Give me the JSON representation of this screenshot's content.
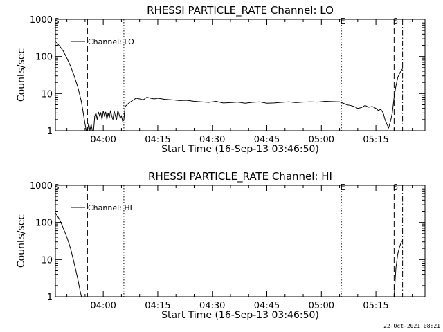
{
  "chart_data": [
    {
      "type": "line",
      "title": "RHESSI PARTICLE_RATE Channel: LO",
      "xlabel": "Start Time (16-Sep-13 03:46:50)",
      "ylabel": "Counts/sec",
      "yscale": "log",
      "xlim": [
        "03:46:50",
        "05:28:30"
      ],
      "ylim": [
        1,
        1000
      ],
      "xticks": [
        "04:00",
        "04:15",
        "04:30",
        "04:45",
        "05:00",
        "05:15"
      ],
      "yticks": [
        "1",
        "10",
        "100",
        "1000"
      ],
      "legend": {
        "placement": "top-left",
        "entries": [
          "Channel: LO"
        ]
      },
      "event_lines": [
        {
          "label": "S",
          "time": "03:46:50",
          "style": "none"
        },
        {
          "label": "",
          "time": "03:55:40",
          "style": "dashed"
        },
        {
          "label": "",
          "time": "04:05:40",
          "style": "dotted"
        },
        {
          "label": "E",
          "time": "05:05:30",
          "style": "dotted"
        },
        {
          "label": "S",
          "time": "05:20:00",
          "style": "dashed"
        },
        {
          "label": "",
          "time": "05:22:20",
          "style": "dash-dot"
        }
      ],
      "series": [
        {
          "x": [
            "03:46:50",
            "03:48:00",
            "03:49:00",
            "03:50:00",
            "03:51:00",
            "03:52:00",
            "03:53:00",
            "03:54:00",
            "03:54:30",
            "03:55:00",
            "03:55:20",
            "03:55:40",
            "03:56:00",
            "03:56:20",
            "03:56:40",
            "03:57:00",
            "03:57:20",
            "03:57:40",
            "03:58:00",
            "03:58:20",
            "03:58:40",
            "03:59:00",
            "03:59:20",
            "03:59:40",
            "04:00:00",
            "04:00:20",
            "04:00:40",
            "04:01:00",
            "04:01:20",
            "04:01:40",
            "04:02:00",
            "04:02:20",
            "04:02:40",
            "04:03:00",
            "04:03:20",
            "04:03:40",
            "04:04:00",
            "04:04:20",
            "04:04:40",
            "04:05:00",
            "04:05:20",
            "04:05:40",
            "04:06:00",
            "04:07:00",
            "04:08:00",
            "04:09:00",
            "04:10:00",
            "04:11:00",
            "04:12:00",
            "04:13:00",
            "04:14:00",
            "04:15:00",
            "04:17:00",
            "04:19:00",
            "04:21:00",
            "04:23:00",
            "04:25:00",
            "04:27:00",
            "04:29:00",
            "04:31:00",
            "04:33:00",
            "04:35:00",
            "04:37:00",
            "04:39:00",
            "04:41:00",
            "04:43:00",
            "04:45:00",
            "04:47:00",
            "04:49:00",
            "04:51:00",
            "04:53:00",
            "04:55:00",
            "04:57:00",
            "04:59:00",
            "05:01:00",
            "05:03:00",
            "05:05:00",
            "05:06:00",
            "05:07:00",
            "05:08:00",
            "05:09:00",
            "05:10:00",
            "05:11:00",
            "05:12:00",
            "05:13:00",
            "05:14:00",
            "05:15:00",
            "05:15:40",
            "05:16:20",
            "05:17:00",
            "05:17:30",
            "05:18:00",
            "05:18:30",
            "05:19:00",
            "05:19:30",
            "05:20:00",
            "05:20:30",
            "05:21:00",
            "05:21:30",
            "05:22:00",
            "05:22:20"
          ],
          "values": [
            260,
            190,
            140,
            90,
            55,
            30,
            15,
            6,
            3,
            1.5,
            1,
            1,
            1.6,
            1,
            1.5,
            1,
            1,
            2.5,
            3,
            2,
            3.2,
            2.5,
            3,
            2,
            3.4,
            2.5,
            3.2,
            2,
            3,
            2.2,
            3.5,
            2.5,
            2,
            3.4,
            2.5,
            2,
            3.5,
            2.8,
            2.2,
            2.5,
            1.8,
            1.9,
            4.5,
            5.5,
            6.5,
            7.5,
            7.2,
            6.8,
            8,
            7.5,
            7.2,
            7.5,
            7,
            6.8,
            6.5,
            6.6,
            6.2,
            6,
            5.8,
            6.2,
            5.6,
            5.7,
            5.9,
            5.5,
            5.8,
            6,
            5.5,
            5.6,
            5.8,
            6,
            5.7,
            5.9,
            6,
            5.9,
            6.2,
            6.1,
            6,
            5.5,
            5,
            4.8,
            4.5,
            4,
            4.2,
            4.8,
            4.3,
            4.5,
            4,
            3.5,
            3.8,
            3,
            2,
            1.5,
            1.2,
            1.8,
            3,
            8,
            16,
            27,
            35,
            42,
            47
          ]
        }
      ]
    },
    {
      "type": "line",
      "title": "RHESSI PARTICLE_RATE Channel: HI",
      "xlabel": "Start Time (16-Sep-13 03:46:50)",
      "ylabel": "Counts/sec",
      "yscale": "log",
      "xlim": [
        "03:46:50",
        "05:28:30"
      ],
      "ylim": [
        1,
        1000
      ],
      "xticks": [
        "04:00",
        "04:15",
        "04:30",
        "04:45",
        "05:00",
        "05:15"
      ],
      "yticks": [
        "1",
        "10",
        "100",
        "1000"
      ],
      "legend": {
        "placement": "top-left",
        "entries": [
          "Channel: HI"
        ]
      },
      "event_lines": [
        {
          "label": "S",
          "time": "03:46:50",
          "style": "none"
        },
        {
          "label": "",
          "time": "03:55:40",
          "style": "dashed"
        },
        {
          "label": "",
          "time": "04:05:40",
          "style": "dotted"
        },
        {
          "label": "E",
          "time": "05:05:30",
          "style": "dotted"
        },
        {
          "label": "S",
          "time": "05:20:00",
          "style": "dashed"
        },
        {
          "label": "",
          "time": "05:22:20",
          "style": "dash-dot"
        }
      ],
      "series": [
        {
          "x": [
            "03:46:50",
            "03:48:00",
            "03:49:00",
            "03:50:00",
            "03:51:00",
            "03:52:00",
            "03:53:00",
            "03:53:40",
            "03:54:00",
            "05:20:00",
            "05:20:30",
            "05:21:00",
            "05:21:30",
            "05:22:00",
            "05:22:20"
          ],
          "values": [
            180,
            120,
            70,
            40,
            20,
            8,
            3,
            1.4,
            1,
            1,
            6,
            14,
            22,
            30,
            33
          ]
        }
      ]
    }
  ],
  "footer": {
    "timestamp": "22-Oct-2021 08:21"
  }
}
